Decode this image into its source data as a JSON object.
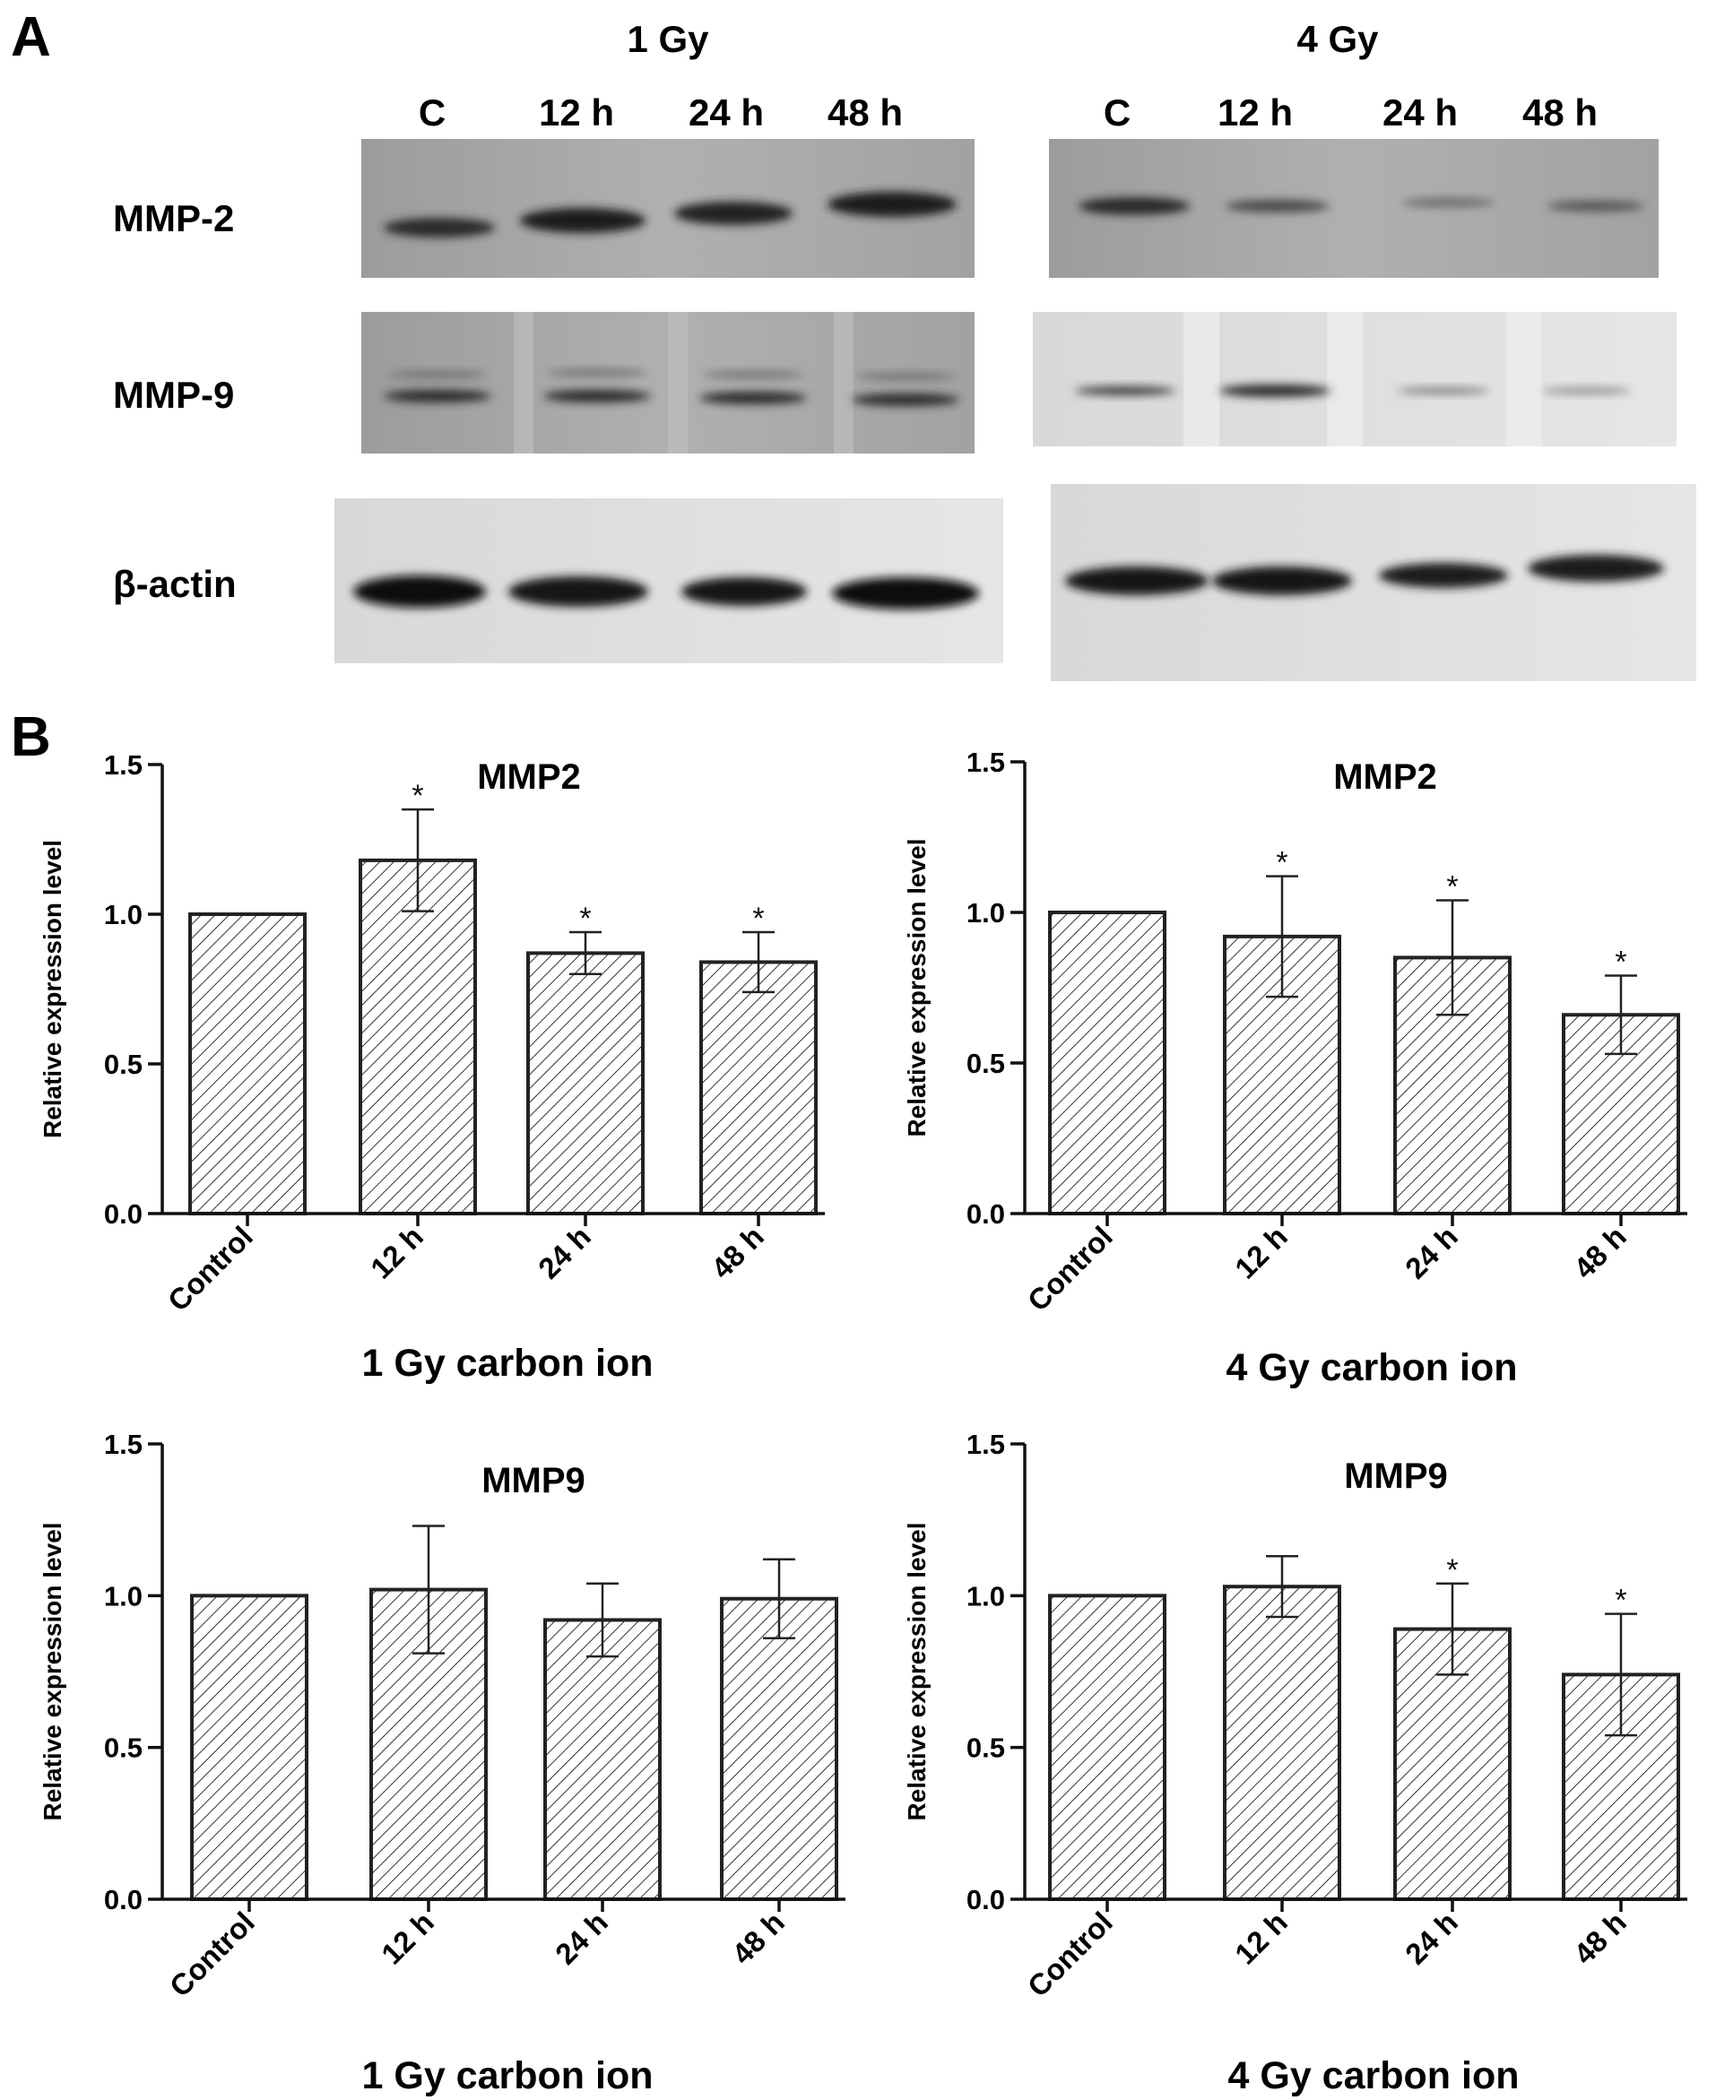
{
  "panel_a": {
    "label": "A",
    "groups": [
      {
        "title": "1 Gy",
        "lanes": [
          "C",
          "12 h",
          "24 h",
          "48 h"
        ]
      },
      {
        "title": "4 Gy",
        "lanes": [
          "C",
          "12 h",
          "24 h",
          "48 h"
        ]
      }
    ],
    "row_labels": [
      "MMP-2",
      "MMP-9",
      "β-actin"
    ]
  },
  "panel_b": {
    "label": "B"
  },
  "chart_data": [
    {
      "type": "bar",
      "title": "MMP2",
      "xlabel": "1 Gy carbon ion",
      "ylabel": "Relative expression level",
      "categories": [
        "Control",
        "12 h",
        "24 h",
        "48 h"
      ],
      "values": [
        1.0,
        1.18,
        0.87,
        0.84
      ],
      "errors": [
        0,
        0.17,
        0.07,
        0.1
      ],
      "significance": [
        "",
        "*",
        "*",
        "*"
      ],
      "ylim": [
        0,
        1.5
      ],
      "yticks": [
        "0.0",
        "0.5",
        "1.0",
        "1.5"
      ],
      "fill": "diagonal-hatch",
      "bar_color": "#222222",
      "title_style": "in-plot"
    },
    {
      "type": "bar",
      "title": "MMP2",
      "xlabel": "4 Gy carbon ion",
      "ylabel": "Relative expression level",
      "categories": [
        "Control",
        "12 h",
        "24 h",
        "48 h"
      ],
      "values": [
        1.0,
        0.92,
        0.85,
        0.66
      ],
      "errors": [
        0,
        0.2,
        0.19,
        0.13
      ],
      "significance": [
        "",
        "*",
        "*",
        "*"
      ],
      "ylim": [
        0,
        1.5
      ],
      "yticks": [
        "0.0",
        "0.5",
        "1.0",
        "1.5"
      ],
      "fill": "diagonal-hatch",
      "bar_color": "#222222",
      "title_style": "in-plot"
    },
    {
      "type": "bar",
      "title": "MMP9",
      "xlabel": "1 Gy carbon ion",
      "ylabel": "Relative expression level",
      "categories": [
        "Control",
        "12 h",
        "24 h",
        "48 h"
      ],
      "values": [
        1.0,
        1.02,
        0.92,
        0.99
      ],
      "errors": [
        0,
        0.21,
        0.12,
        0.13
      ],
      "significance": [
        "",
        "",
        "",
        ""
      ],
      "ylim": [
        0,
        1.5
      ],
      "yticks": [
        "0.0",
        "0.5",
        "1.0",
        "1.5"
      ],
      "fill": "diagonal-hatch",
      "bar_color": "#222222",
      "title_style": "in-plot"
    },
    {
      "type": "bar",
      "title": "MMP9",
      "xlabel": "4 Gy carbon ion",
      "ylabel": "Relative expression level",
      "categories": [
        "Control",
        "12 h",
        "24 h",
        "48 h"
      ],
      "values": [
        1.0,
        1.03,
        0.89,
        0.74
      ],
      "errors": [
        0,
        0.1,
        0.15,
        0.2
      ],
      "significance": [
        "",
        "",
        "*",
        "*"
      ],
      "ylim": [
        0,
        1.5
      ],
      "yticks": [
        "0.0",
        "0.5",
        "1.0",
        "1.5"
      ],
      "fill": "diagonal-hatch",
      "bar_color": "#222222",
      "title_style": "in-plot"
    }
  ]
}
